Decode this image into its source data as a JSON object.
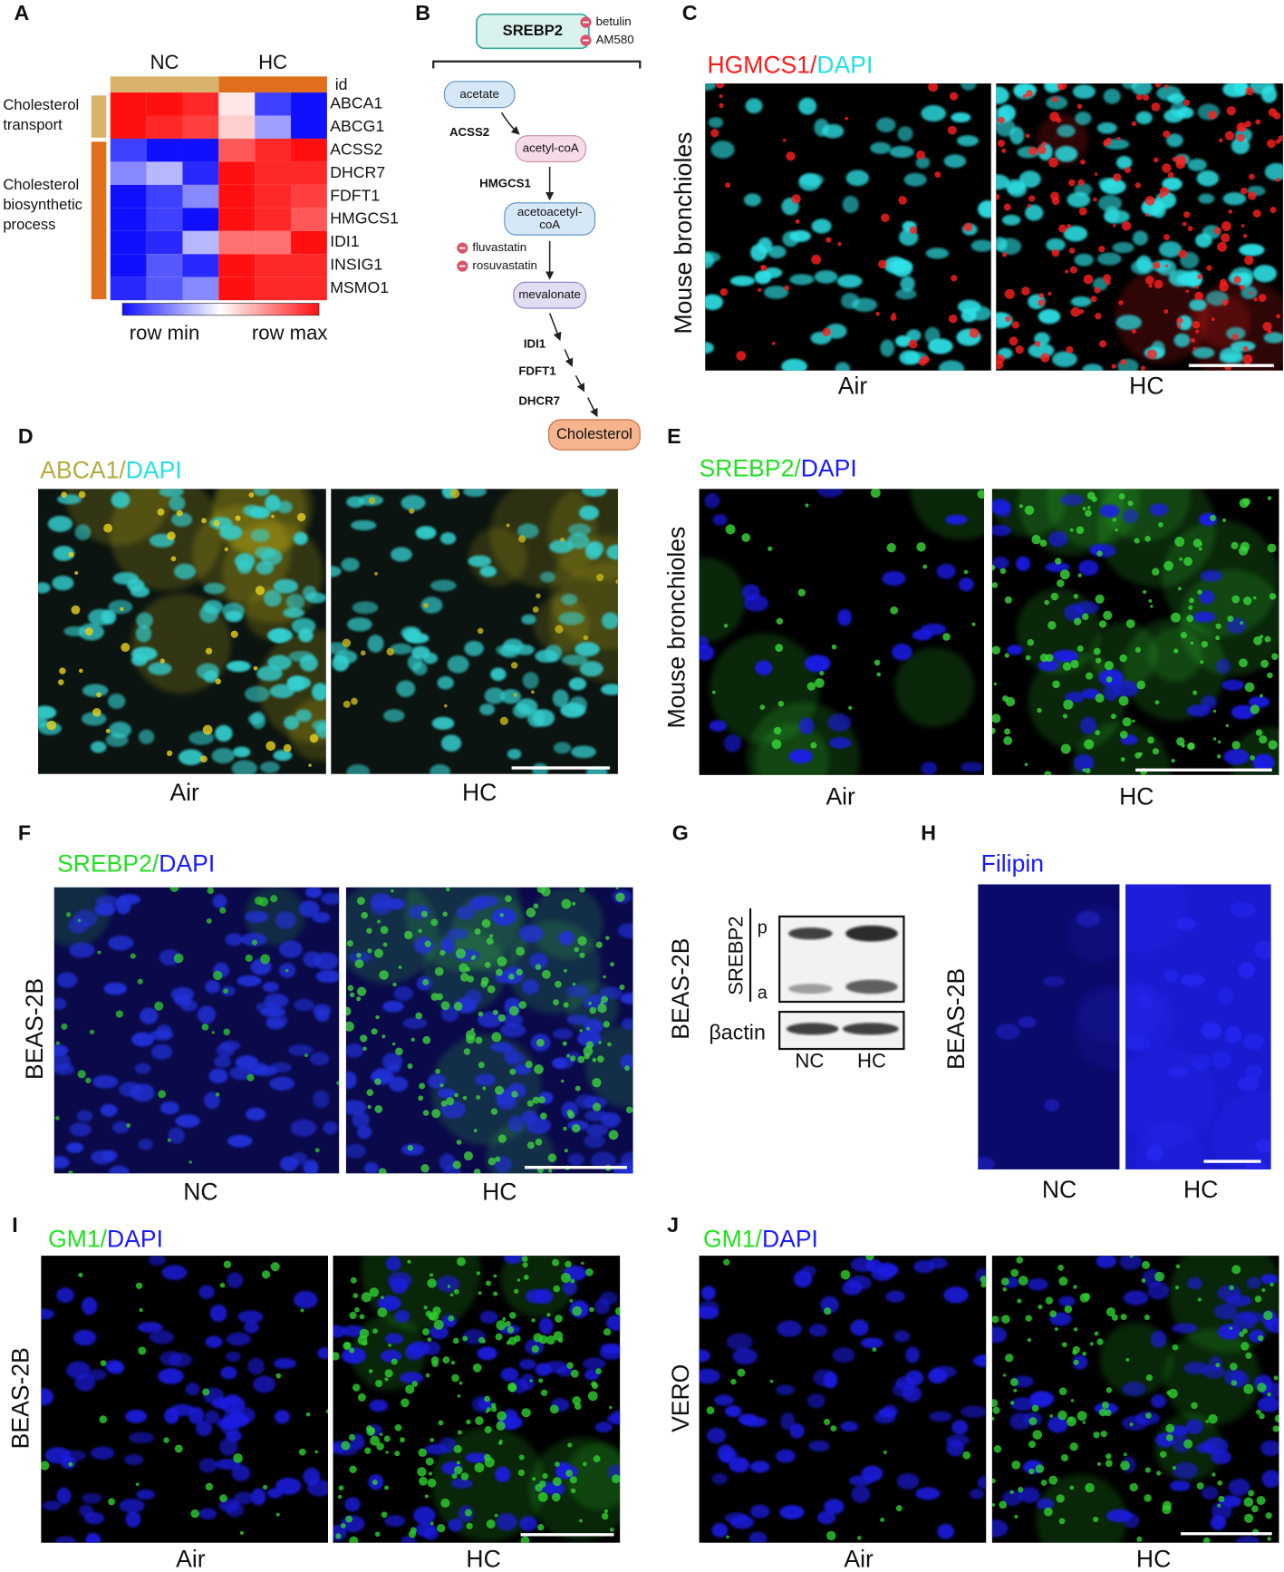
{
  "A": {
    "label": "A",
    "groups": [
      "NC",
      "HC"
    ],
    "id_header": "id",
    "genes": [
      "ABCA1",
      "ABCG1",
      "ACSS2",
      "DHCR7",
      "FDFT1",
      "HMGCS1",
      "IDI1",
      "INSIG1",
      "MSMO1"
    ],
    "row_groups": [
      {
        "lines": [
          "Cholesterol",
          "transport"
        ]
      },
      {
        "lines": [
          "Cholesterol",
          "biosynthetic",
          "process"
        ]
      }
    ],
    "legend": [
      "row min",
      "row max"
    ],
    "values": [
      [
        1,
        1,
        0.9,
        0.1,
        -0.8,
        -1
      ],
      [
        1,
        0.9,
        0.8,
        0.2,
        -0.4,
        -1
      ],
      [
        -0.8,
        -1,
        -1,
        0.7,
        0.9,
        1
      ],
      [
        -0.5,
        -0.3,
        -0.9,
        1,
        0.9,
        0.9
      ],
      [
        -1,
        -0.8,
        -0.5,
        1,
        0.9,
        0.8
      ],
      [
        -1,
        -0.8,
        -1,
        1,
        0.9,
        0.7
      ],
      [
        -1,
        -0.9,
        -0.3,
        0.6,
        0.6,
        1
      ],
      [
        -1,
        -0.7,
        -0.9,
        1,
        0.9,
        0.9
      ],
      [
        -0.9,
        -0.7,
        -0.5,
        1,
        0.9,
        0.9
      ]
    ]
  },
  "B": {
    "label": "B",
    "regulator": "SREBP2",
    "inhibitors": [
      "betulin",
      "AM580"
    ],
    "nodes": [
      [
        "acetate"
      ],
      [
        "acetyl-coA"
      ],
      [
        "acetoacetyl-",
        "coA"
      ],
      [
        "mevalonate"
      ],
      [
        "Cholesterol"
      ]
    ],
    "enzymes": [
      "ACSS2",
      "HMGCS1",
      "IDI1",
      "FDFT1",
      "DHCR7"
    ],
    "statins": [
      "fluvastatin",
      "rosuvastatin"
    ]
  },
  "C": {
    "label": "C",
    "stain": [
      {
        "text": "HGMCS1",
        "color": "#ff1a1a"
      },
      {
        "text": "/",
        "color": "#ff1a1a"
      },
      {
        "text": "DAPI",
        "color": "#22e0e8"
      }
    ],
    "side_label": "Mouse bronchioles",
    "images": [
      "Air",
      "HC"
    ]
  },
  "D": {
    "label": "D",
    "stain": [
      {
        "text": "ABCA1",
        "color": "#b5ab3c"
      },
      {
        "text": "/",
        "color": "#b5ab3c"
      },
      {
        "text": "DAPI",
        "color": "#22e0e8"
      }
    ],
    "images": [
      "Air",
      "HC"
    ]
  },
  "E": {
    "label": "E",
    "stain": [
      {
        "text": "SREBP2",
        "color": "#22e022"
      },
      {
        "text": "/",
        "color": "#22e022"
      },
      {
        "text": "DAPI",
        "color": "#1a1aff"
      }
    ],
    "side_label": "Mouse bronchioles",
    "images": [
      "Air",
      "HC"
    ]
  },
  "F": {
    "label": "F",
    "stain": [
      {
        "text": "SREBP2",
        "color": "#22e022"
      },
      {
        "text": "/",
        "color": "#22e022"
      },
      {
        "text": "DAPI",
        "color": "#1a1aff"
      }
    ],
    "side_label": "BEAS-2B",
    "images": [
      "NC",
      "HC"
    ]
  },
  "G": {
    "label": "G",
    "side_label": "BEAS-2B",
    "protein": "SREBP2",
    "forms": [
      "p",
      "a"
    ],
    "loading": "βactin",
    "lanes": [
      "NC",
      "HC"
    ]
  },
  "H": {
    "label": "H",
    "stain": [
      {
        "text": "Filipin",
        "color": "#1a1aff"
      }
    ],
    "side_label": "BEAS-2B",
    "images": [
      "NC",
      "HC"
    ]
  },
  "I": {
    "label": "I",
    "stain": [
      {
        "text": "GM1",
        "color": "#22e022"
      },
      {
        "text": "/",
        "color": "#22e022"
      },
      {
        "text": "DAPI",
        "color": "#1a1aff"
      }
    ],
    "side_label": "BEAS-2B",
    "images": [
      "Air",
      "HC"
    ]
  },
  "J": {
    "label": "J",
    "stain": [
      {
        "text": "GM1",
        "color": "#22e022"
      },
      {
        "text": "/",
        "color": "#22e022"
      },
      {
        "text": "DAPI",
        "color": "#1a1aff"
      }
    ],
    "side_label": "VERO",
    "images": [
      "Air",
      "HC"
    ]
  }
}
